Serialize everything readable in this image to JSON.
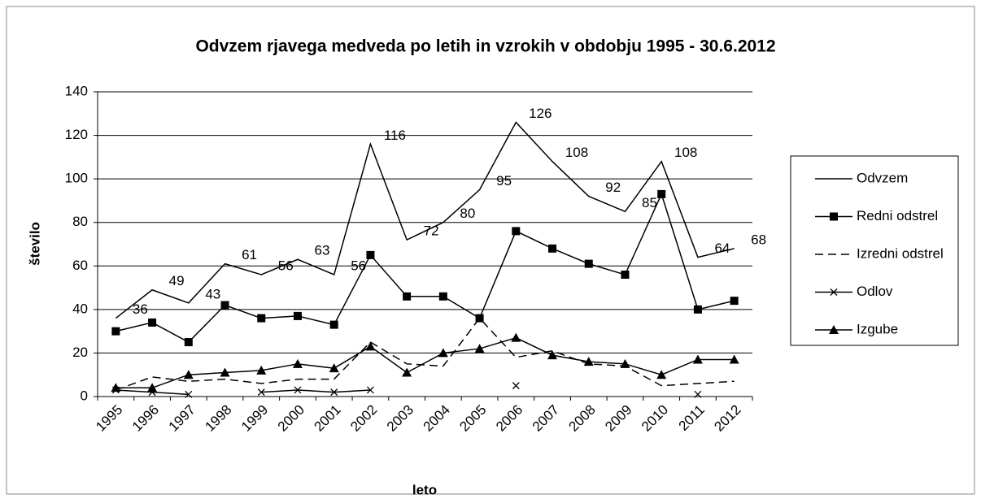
{
  "chart_data": {
    "type": "line",
    "title": "Odvzem rjavega medveda po letih in vzrokih  v obdobju 1995 - 30.6.2012",
    "xlabel": "leto",
    "ylabel": "število",
    "categories": [
      "1995",
      "1996",
      "1997",
      "1998",
      "1999",
      "2000",
      "2001",
      "2002",
      "2003",
      "2004",
      "2005",
      "2006",
      "2007",
      "2008",
      "2009",
      "2010",
      "2011",
      "2012"
    ],
    "ylim": [
      0,
      140
    ],
    "yticks": [
      0,
      20,
      40,
      60,
      80,
      100,
      120,
      140
    ],
    "grid": true,
    "legend": "right",
    "data_labels_series": "Odvzem",
    "series": [
      {
        "name": "Odvzem",
        "color": "#000000",
        "style": "solid",
        "marker": "none",
        "values": [
          36,
          49,
          43,
          61,
          56,
          63,
          56,
          116,
          72,
          80,
          95,
          126,
          108,
          92,
          85,
          108,
          64,
          68
        ]
      },
      {
        "name": "Redni odstrel",
        "color": "#000000",
        "style": "solid",
        "marker": "square",
        "values": [
          30,
          34,
          25,
          42,
          36,
          37,
          33,
          65,
          46,
          46,
          36,
          76,
          68,
          61,
          56,
          93,
          40,
          44
        ]
      },
      {
        "name": "Izredni odstrel",
        "color": "#000000",
        "style": "dashed",
        "marker": "none",
        "values": [
          3,
          9,
          7,
          8,
          6,
          8,
          8,
          25,
          15,
          14,
          36,
          18,
          21,
          15,
          14,
          5,
          6,
          7
        ]
      },
      {
        "name": "Odlov",
        "color": "#000000",
        "style": "solid",
        "marker": "x",
        "values": [
          3,
          2,
          1,
          null,
          2,
          3,
          2,
          3,
          null,
          null,
          null,
          5,
          null,
          null,
          null,
          null,
          1,
          null
        ]
      },
      {
        "name": "Izgube",
        "color": "#000000",
        "style": "solid",
        "marker": "triangle",
        "values": [
          4,
          4,
          10,
          11,
          12,
          15,
          13,
          23,
          11,
          20,
          22,
          27,
          19,
          16,
          15,
          10,
          17,
          17
        ]
      }
    ]
  }
}
